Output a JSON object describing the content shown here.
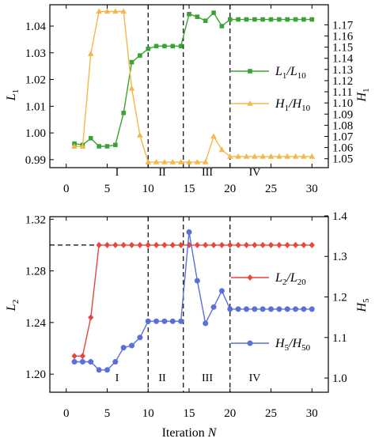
{
  "chart_data": [
    {
      "type": "line",
      "ylabel": "L1",
      "y2label": "H1",
      "xlim": [
        -2,
        32
      ],
      "ylim": [
        0.987,
        1.048
      ],
      "y2lim": [
        1.042,
        1.188
      ],
      "xticks": [
        "0",
        "5",
        "10",
        "15",
        "20",
        "25",
        "30"
      ],
      "yticks": [
        "0.99",
        "1.00",
        "1.01",
        "1.02",
        "1.03",
        "1.04"
      ],
      "y2ticks": [
        "1.05",
        "1.06",
        "1.07",
        "1.08",
        "1.09",
        "1.10",
        "1.11",
        "1.12",
        "1.13",
        "1.14",
        "1.15",
        "1.16",
        "1.17"
      ],
      "regions": [
        "I",
        "II",
        "III",
        "IV"
      ],
      "dividers": [
        10,
        14.3,
        20
      ],
      "grid": false,
      "legend_position": "right",
      "series": [
        {
          "name_main": "L",
          "name_sub": "1",
          "name_mid": "/L",
          "name_sub2": "10",
          "axis": "left",
          "color": "#3aa335",
          "marker": "square",
          "x": [
            1,
            2,
            3,
            4,
            5,
            6,
            7,
            8,
            9,
            10,
            11,
            12,
            13,
            14,
            15,
            16,
            17,
            18,
            19,
            20,
            21,
            22,
            23,
            24,
            25,
            26,
            27,
            28,
            29,
            30
          ],
          "values": [
            0.996,
            0.9955,
            0.998,
            0.995,
            0.995,
            0.9955,
            1.0075,
            1.0265,
            1.029,
            1.0315,
            1.0325,
            1.0325,
            1.0325,
            1.0325,
            1.0445,
            1.0435,
            1.042,
            1.045,
            1.04,
            1.0425,
            1.0425,
            1.0425,
            1.0425,
            1.0425,
            1.0425,
            1.0425,
            1.0425,
            1.0425,
            1.0425,
            1.0425
          ]
        },
        {
          "name_main": "H",
          "name_sub": "1",
          "name_mid": "/H",
          "name_sub2": "10",
          "axis": "right",
          "color": "#f2b84b",
          "marker": "triangle",
          "x": [
            1,
            2,
            3,
            4,
            5,
            6,
            7,
            8,
            9,
            10,
            11,
            12,
            13,
            14,
            15,
            16,
            17,
            18,
            19,
            20,
            21,
            22,
            23,
            24,
            25,
            26,
            27,
            28,
            29,
            30
          ],
          "values": [
            1.061,
            1.061,
            1.144,
            1.182,
            1.182,
            1.182,
            1.182,
            1.113,
            1.071,
            1.047,
            1.047,
            1.047,
            1.047,
            1.047,
            1.047,
            1.047,
            1.047,
            1.07,
            1.058,
            1.052,
            1.052,
            1.052,
            1.052,
            1.052,
            1.052,
            1.052,
            1.052,
            1.052,
            1.052,
            1.052
          ]
        }
      ]
    },
    {
      "type": "line",
      "xlabel_main": "Iteration ",
      "xlabel_var": "N",
      "ylabel": "L2",
      "y2label": "H5",
      "xlim": [
        -2,
        32
      ],
      "ylim": [
        1.186,
        1.322
      ],
      "y2lim": [
        0.965,
        1.398
      ],
      "xticks": [
        "0",
        "5",
        "10",
        "15",
        "20",
        "25",
        "30"
      ],
      "yticks": [
        "1.20",
        "1.24",
        "1.28",
        "1.32"
      ],
      "y2ticks": [
        "1.0",
        "1.1",
        "1.2",
        "1.3",
        "1.4"
      ],
      "regions": [
        "I",
        "II",
        "III",
        "IV"
      ],
      "dividers": [
        10,
        14.3,
        20
      ],
      "reference_level": 1.3,
      "grid": false,
      "legend_position": "right",
      "series": [
        {
          "name_main": "L",
          "name_sub": "2",
          "name_mid": "/L",
          "name_sub2": "20",
          "axis": "left",
          "color": "#e8453c",
          "marker": "diamond",
          "x": [
            1,
            2,
            3,
            4,
            5,
            6,
            7,
            8,
            9,
            10,
            11,
            12,
            13,
            14,
            15,
            16,
            17,
            18,
            19,
            20,
            21,
            22,
            23,
            24,
            25,
            26,
            27,
            28,
            29,
            30
          ],
          "values": [
            1.214,
            1.214,
            1.244,
            1.3,
            1.3,
            1.3,
            1.3,
            1.3,
            1.3,
            1.3,
            1.3,
            1.3,
            1.3,
            1.3,
            1.3,
            1.3,
            1.3,
            1.3,
            1.3,
            1.3,
            1.3,
            1.3,
            1.3,
            1.3,
            1.3,
            1.3,
            1.3,
            1.3,
            1.3,
            1.3
          ]
        },
        {
          "name_main": "H",
          "name_sub": "5",
          "name_mid": "/H",
          "name_sub2": "50",
          "axis": "right",
          "color": "#5b6fd8",
          "marker": "circle",
          "x": [
            1,
            2,
            3,
            4,
            5,
            6,
            7,
            8,
            9,
            10,
            11,
            12,
            13,
            14,
            15,
            16,
            17,
            18,
            19,
            20,
            21,
            22,
            23,
            24,
            25,
            26,
            27,
            28,
            29,
            30
          ],
          "values": [
            1.04,
            1.04,
            1.04,
            1.02,
            1.02,
            1.04,
            1.075,
            1.08,
            1.1,
            1.14,
            1.14,
            1.14,
            1.14,
            1.14,
            1.36,
            1.24,
            1.135,
            1.175,
            1.215,
            1.17,
            1.17,
            1.17,
            1.17,
            1.17,
            1.17,
            1.17,
            1.17,
            1.17,
            1.17,
            1.17
          ]
        }
      ]
    }
  ]
}
